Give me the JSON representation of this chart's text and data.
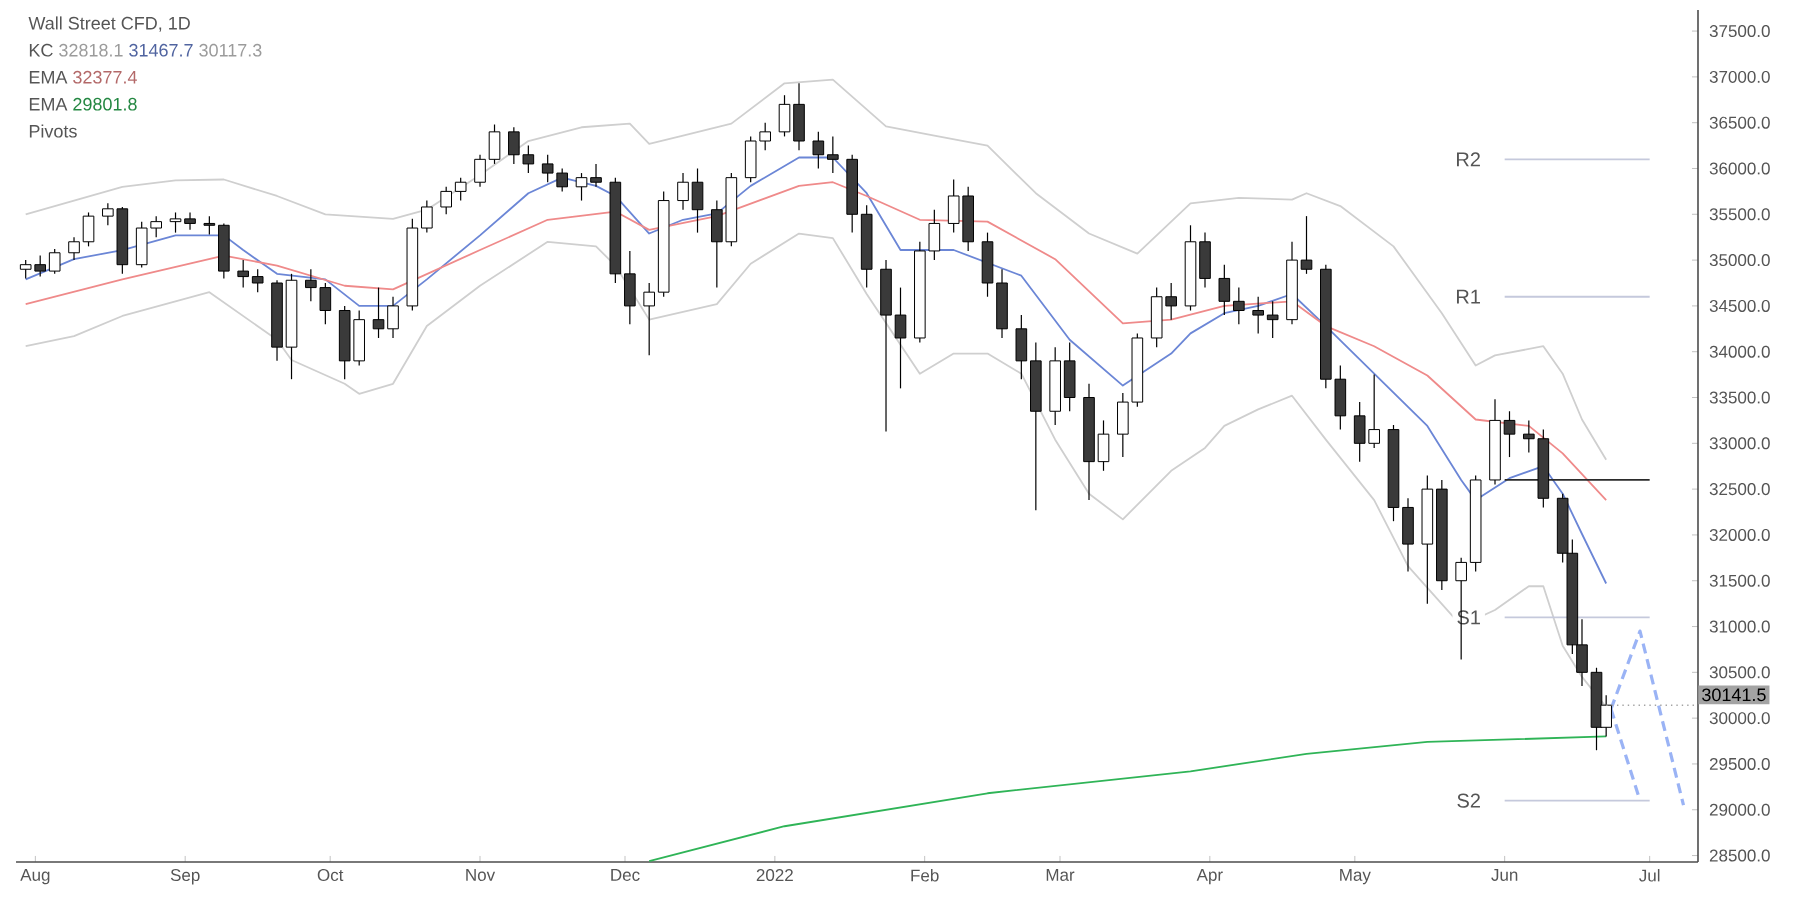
{
  "chart_data": {
    "type": "candlestick",
    "title": "Wall Street CFD, 1D",
    "annotations": [
      "KC",
      "32818.1",
      "31467.7",
      "30117.3",
      "EMA",
      "32377.4",
      "EMA",
      "29801.8",
      "Pivots"
    ],
    "ref_lines": [
      {
        "axis": "y",
        "value": 30141.5,
        "label": "30141.5",
        "color": "#a3a3a3",
        "line_style": "dotted"
      }
    ],
    "x": [
      "2021-07-30",
      "2021-08-02",
      "2021-08-05",
      "2021-08-09",
      "2021-08-12",
      "2021-08-16",
      "2021-08-19",
      "2021-08-23",
      "2021-08-26",
      "2021-08-30",
      "2021-09-02",
      "2021-09-06",
      "2021-09-09",
      "2021-09-13",
      "2021-09-16",
      "2021-09-20",
      "2021-09-23",
      "2021-09-27",
      "2021-09-30",
      "2021-10-04",
      "2021-10-07",
      "2021-10-11",
      "2021-10-14",
      "2021-10-18",
      "2021-10-21",
      "2021-10-25",
      "2021-10-28",
      "2021-11-01",
      "2021-11-04",
      "2021-11-08",
      "2021-11-11",
      "2021-11-15",
      "2021-11-18",
      "2021-11-22",
      "2021-11-25",
      "2021-11-29",
      "2021-12-02",
      "2021-12-06",
      "2021-12-09",
      "2021-12-13",
      "2021-12-16",
      "2021-12-20",
      "2021-12-23",
      "2021-12-27",
      "2021-12-30",
      "2022-01-03",
      "2022-01-06",
      "2022-01-10",
      "2022-01-13",
      "2022-01-17",
      "2022-01-20",
      "2022-01-24",
      "2022-01-27",
      "2022-01-31",
      "2022-02-03",
      "2022-02-07",
      "2022-02-10",
      "2022-02-14",
      "2022-02-17",
      "2022-02-21",
      "2022-02-24",
      "2022-02-28",
      "2022-03-03",
      "2022-03-07",
      "2022-03-10",
      "2022-03-14",
      "2022-03-17",
      "2022-03-21",
      "2022-03-24",
      "2022-03-28",
      "2022-03-31",
      "2022-04-04",
      "2022-04-07",
      "2022-04-11",
      "2022-04-14",
      "2022-04-18",
      "2022-04-21",
      "2022-04-25",
      "2022-04-28",
      "2022-05-02",
      "2022-05-05",
      "2022-05-09",
      "2022-05-12",
      "2022-05-16",
      "2022-05-19",
      "2022-05-23",
      "2022-05-26",
      "2022-05-30",
      "2022-06-02",
      "2022-06-06",
      "2022-06-09",
      "2022-06-13",
      "2022-06-15",
      "2022-06-17",
      "2022-06-20",
      "2022-06-22"
    ],
    "ohlc": [
      [
        34900,
        35000,
        34800,
        34950
      ],
      [
        34950,
        35050,
        34820,
        34880
      ],
      [
        34880,
        35120,
        34850,
        35080
      ],
      [
        35080,
        35250,
        35000,
        35200
      ],
      [
        35200,
        35520,
        35150,
        35480
      ],
      [
        35480,
        35620,
        35380,
        35560
      ],
      [
        35560,
        35580,
        34850,
        34950
      ],
      [
        34950,
        35420,
        34920,
        35350
      ],
      [
        35350,
        35480,
        35250,
        35420
      ],
      [
        35420,
        35520,
        35300,
        35450
      ],
      [
        35450,
        35520,
        35330,
        35400
      ],
      [
        35400,
        35480,
        35280,
        35380
      ],
      [
        35380,
        35400,
        34800,
        34880
      ],
      [
        34880,
        35000,
        34700,
        34820
      ],
      [
        34820,
        34900,
        34650,
        34750
      ],
      [
        34750,
        34780,
        33900,
        34050
      ],
      [
        34050,
        34850,
        33700,
        34780
      ],
      [
        34780,
        34900,
        34550,
        34700
      ],
      [
        34700,
        34750,
        34300,
        34450
      ],
      [
        34450,
        34500,
        33700,
        33900
      ],
      [
        33900,
        34450,
        33850,
        34350
      ],
      [
        34350,
        34700,
        34150,
        34250
      ],
      [
        34250,
        34600,
        34150,
        34500
      ],
      [
        34500,
        35450,
        34450,
        35350
      ],
      [
        35350,
        35650,
        35300,
        35580
      ],
      [
        35580,
        35800,
        35500,
        35750
      ],
      [
        35750,
        35900,
        35650,
        35850
      ],
      [
        35850,
        36150,
        35800,
        36100
      ],
      [
        36100,
        36480,
        36050,
        36400
      ],
      [
        36400,
        36450,
        36050,
        36150
      ],
      [
        36150,
        36250,
        35950,
        36050
      ],
      [
        36050,
        36150,
        35850,
        35950
      ],
      [
        35950,
        36000,
        35750,
        35800
      ],
      [
        35800,
        35950,
        35650,
        35900
      ],
      [
        35900,
        36050,
        35800,
        35850
      ],
      [
        35850,
        35900,
        34750,
        34850
      ],
      [
        34850,
        35100,
        34300,
        34500
      ],
      [
        34500,
        34750,
        33960,
        34650
      ],
      [
        34650,
        35750,
        34600,
        35650
      ],
      [
        35650,
        35950,
        35550,
        35850
      ],
      [
        35850,
        36000,
        35300,
        35550
      ],
      [
        35550,
        35650,
        34700,
        35200
      ],
      [
        35200,
        35950,
        35150,
        35900
      ],
      [
        35900,
        36350,
        35850,
        36300
      ],
      [
        36300,
        36500,
        36200,
        36400
      ],
      [
        36400,
        36800,
        36350,
        36700
      ],
      [
        36700,
        36930,
        36200,
        36300
      ],
      [
        36300,
        36400,
        36000,
        36150
      ],
      [
        36150,
        36350,
        35950,
        36100
      ],
      [
        36100,
        36150,
        35300,
        35500
      ],
      [
        35500,
        35600,
        34700,
        34900
      ],
      [
        34900,
        35000,
        33130,
        34400
      ],
      [
        34400,
        34700,
        33600,
        34150
      ],
      [
        34150,
        35200,
        34100,
        35100
      ],
      [
        35100,
        35550,
        35000,
        35400
      ],
      [
        35400,
        35880,
        35300,
        35700
      ],
      [
        35700,
        35800,
        35100,
        35200
      ],
      [
        35200,
        35300,
        34600,
        34750
      ],
      [
        34750,
        34900,
        34150,
        34250
      ],
      [
        34250,
        34400,
        33700,
        33900
      ],
      [
        33900,
        34100,
        32270,
        33350
      ],
      [
        33350,
        34050,
        33200,
        33900
      ],
      [
        33900,
        34100,
        33350,
        33500
      ],
      [
        33500,
        33650,
        32380,
        32800
      ],
      [
        32800,
        33250,
        32700,
        33100
      ],
      [
        33100,
        33550,
        32850,
        33450
      ],
      [
        33450,
        34200,
        33400,
        34150
      ],
      [
        34150,
        34700,
        34050,
        34600
      ],
      [
        34600,
        34750,
        34350,
        34500
      ],
      [
        34500,
        35380,
        34450,
        35200
      ],
      [
        35200,
        35300,
        34700,
        34800
      ],
      [
        34800,
        34950,
        34400,
        34550
      ],
      [
        34550,
        34700,
        34300,
        34450
      ],
      [
        34450,
        34600,
        34200,
        34400
      ],
      [
        34400,
        34550,
        34150,
        34350
      ],
      [
        34350,
        35200,
        34300,
        35000
      ],
      [
        35000,
        35480,
        34850,
        34900
      ],
      [
        34900,
        34950,
        33600,
        33700
      ],
      [
        33700,
        33850,
        33150,
        33300
      ],
      [
        33300,
        33450,
        32800,
        33000
      ],
      [
        33000,
        33750,
        32950,
        33150
      ],
      [
        33150,
        33200,
        32150,
        32300
      ],
      [
        32300,
        32400,
        31600,
        31900
      ],
      [
        31900,
        32650,
        31250,
        32500
      ],
      [
        32500,
        32600,
        31400,
        31500
      ],
      [
        31500,
        31750,
        30640,
        31700
      ],
      [
        31700,
        32650,
        31600,
        32600
      ],
      [
        32600,
        33480,
        32550,
        33250
      ],
      [
        33250,
        33350,
        32850,
        33100
      ],
      [
        33100,
        33250,
        32900,
        33050
      ],
      [
        33050,
        33150,
        32300,
        32400
      ],
      [
        32400,
        32450,
        31700,
        31800
      ],
      [
        31800,
        31950,
        30700,
        30800
      ],
      [
        30800,
        31080,
        30350,
        30500
      ],
      [
        30500,
        30550,
        29650,
        29900
      ],
      [
        29900,
        30250,
        29800,
        30141.5
      ]
    ],
    "series": [
      {
        "type": "line",
        "color": "#cfcfcf",
        "x": [
          "2021-07-30",
          "2021-08-09",
          "2021-08-19",
          "2021-08-30",
          "2021-09-09",
          "2021-09-20",
          "2021-09-30",
          "2021-10-14",
          "2021-10-21",
          "2021-11-01",
          "2021-11-11",
          "2021-11-22",
          "2021-12-02",
          "2021-12-06",
          "2021-12-13",
          "2021-12-23",
          "2022-01-03",
          "2022-01-13",
          "2022-01-24",
          "2022-02-03",
          "2022-02-14",
          "2022-02-24",
          "2022-03-07",
          "2022-03-17",
          "2022-03-28",
          "2022-04-07",
          "2022-04-18",
          "2022-04-21",
          "2022-04-28",
          "2022-05-09",
          "2022-05-19",
          "2022-05-26",
          "2022-05-30",
          "2022-06-09",
          "2022-06-13",
          "2022-06-17",
          "2022-06-22"
        ],
        "values": [
          35500,
          35650,
          35800,
          35870,
          35880,
          35700,
          35500,
          35450,
          35550,
          35930,
          36300,
          36450,
          36490,
          36270,
          36360,
          36490,
          36930,
          36970,
          36460,
          36360,
          36250,
          35730,
          35290,
          35070,
          35620,
          35680,
          35660,
          35730,
          35590,
          35150,
          34420,
          33850,
          33960,
          34060,
          33760,
          33260,
          32820
        ]
      },
      {
        "type": "line",
        "color": "#6b86d6",
        "x": [
          "2021-07-30",
          "2021-08-09",
          "2021-08-19",
          "2021-08-30",
          "2021-09-09",
          "2021-09-13",
          "2021-09-20",
          "2021-09-30",
          "2021-10-07",
          "2021-10-14",
          "2021-10-21",
          "2021-11-01",
          "2021-11-11",
          "2021-11-18",
          "2021-11-25",
          "2021-11-29",
          "2021-12-06",
          "2021-12-13",
          "2021-12-20",
          "2021-12-27",
          "2022-01-06",
          "2022-01-13",
          "2022-01-20",
          "2022-01-27",
          "2022-02-07",
          "2022-02-21",
          "2022-03-03",
          "2022-03-14",
          "2022-03-24",
          "2022-03-28",
          "2022-04-04",
          "2022-04-11",
          "2022-04-18",
          "2022-04-25",
          "2022-05-05",
          "2022-05-16",
          "2022-05-23",
          "2022-05-26",
          "2022-06-02",
          "2022-06-09",
          "2022-06-13",
          "2022-06-17",
          "2022-06-22"
        ],
        "values": [
          34790,
          35010,
          35110,
          35270,
          35270,
          35110,
          34850,
          34790,
          34500,
          34500,
          34790,
          35270,
          35730,
          35900,
          35810,
          35700,
          35290,
          35440,
          35510,
          35810,
          36120,
          36120,
          35730,
          35110,
          35110,
          34830,
          34130,
          33630,
          33980,
          34200,
          34420,
          34500,
          34630,
          34280,
          33760,
          33190,
          32600,
          32380,
          32620,
          32750,
          32450,
          32010,
          31470
        ]
      },
      {
        "type": "line",
        "color": "#cfcfcf",
        "x": [
          "2021-07-30",
          "2021-08-09",
          "2021-08-19",
          "2021-09-06",
          "2021-09-20",
          "2021-09-23",
          "2021-10-04",
          "2021-10-07",
          "2021-10-14",
          "2021-10-21",
          "2021-11-01",
          "2021-11-15",
          "2021-11-25",
          "2021-11-29",
          "2021-12-06",
          "2021-12-20",
          "2021-12-27",
          "2022-01-06",
          "2022-01-13",
          "2022-01-20",
          "2022-01-31",
          "2022-02-07",
          "2022-02-14",
          "2022-02-21",
          "2022-02-28",
          "2022-03-07",
          "2022-03-14",
          "2022-03-24",
          "2022-03-31",
          "2022-04-04",
          "2022-04-11",
          "2022-04-18",
          "2022-04-25",
          "2022-05-05",
          "2022-05-12",
          "2022-05-23",
          "2022-05-30",
          "2022-06-06",
          "2022-06-09",
          "2022-06-13",
          "2022-06-17",
          "2022-06-22"
        ],
        "values": [
          34060,
          34170,
          34390,
          34650,
          34130,
          33910,
          33650,
          33540,
          33650,
          34280,
          34720,
          35200,
          35150,
          34940,
          34350,
          34520,
          34960,
          35290,
          35240,
          34630,
          33760,
          33980,
          33980,
          33760,
          33040,
          32450,
          32170,
          32700,
          32950,
          33190,
          33370,
          33520,
          33040,
          32380,
          31660,
          31010,
          31180,
          31440,
          31440,
          30790,
          30450,
          30120
        ]
      },
      {
        "type": "line",
        "color": "#ef8a8a",
        "x": [
          "2021-07-30",
          "2021-08-19",
          "2021-09-09",
          "2021-09-20",
          "2021-10-04",
          "2021-10-14",
          "2021-11-01",
          "2021-11-15",
          "2021-11-29",
          "2021-12-06",
          "2021-12-20",
          "2022-01-06",
          "2022-01-13",
          "2022-01-20",
          "2022-01-31",
          "2022-02-14",
          "2022-02-28",
          "2022-03-14",
          "2022-03-24",
          "2022-04-04",
          "2022-04-18",
          "2022-04-25",
          "2022-05-05",
          "2022-05-16",
          "2022-05-26",
          "2022-06-06",
          "2022-06-13",
          "2022-06-22"
        ],
        "values": [
          34520,
          34790,
          35050,
          34940,
          34720,
          34680,
          35110,
          35440,
          35530,
          35330,
          35480,
          35810,
          35850,
          35700,
          35440,
          35420,
          35010,
          34310,
          34350,
          34500,
          34550,
          34280,
          34060,
          33740,
          33260,
          33190,
          32890,
          32380
        ]
      },
      {
        "type": "line",
        "color": "#2fb457",
        "x": [
          "2021-12-06",
          "2022-01-03",
          "2022-02-14",
          "2022-03-28",
          "2022-04-21",
          "2022-05-16",
          "2022-06-22"
        ],
        "values": [
          28440,
          28820,
          29180,
          29420,
          29610,
          29740,
          29800
        ]
      },
      {
        "type": "line",
        "name": "R2",
        "color": "#c5c9dc",
        "x": [
          "2022-06-01",
          "2022-07-01"
        ],
        "values": [
          36100,
          36100
        ]
      },
      {
        "type": "line",
        "name": "R1",
        "color": "#c5c9dc",
        "x": [
          "2022-06-01",
          "2022-07-01"
        ],
        "values": [
          34600,
          34600
        ]
      },
      {
        "type": "line",
        "color": "#2b2b2b",
        "x": [
          "2022-06-01",
          "2022-07-01"
        ],
        "values": [
          32600,
          32600
        ]
      },
      {
        "type": "line",
        "name": "S1",
        "color": "#c5c9dc",
        "x": [
          "2022-06-01",
          "2022-07-01"
        ],
        "values": [
          31100,
          31100
        ]
      },
      {
        "type": "line",
        "name": "S2",
        "color": "#c5c9dc",
        "x": [
          "2022-06-01",
          "2022-07-01"
        ],
        "values": [
          29100,
          29100
        ]
      },
      {
        "type": "line",
        "line_style": "dashed",
        "color": "#9ab3f5",
        "x": [
          "2022-06-23",
          "2022-06-29",
          "2022-07-08"
        ],
        "values": [
          30100,
          30950,
          29050
        ]
      },
      {
        "type": "line",
        "line_style": "dashed",
        "color": "#9ab3f5",
        "x": [
          "2022-06-23",
          "2022-06-29"
        ],
        "values": [
          30100,
          29100
        ]
      }
    ],
    "xlim": [
      "2021-07-28",
      "2022-07-11"
    ],
    "ylim": [
      28430,
      37730
    ],
    "xticks": [
      {
        "value": "2021-08-01",
        "label": "Aug"
      },
      {
        "value": "2021-09-01",
        "label": "Sep"
      },
      {
        "value": "2021-10-01",
        "label": "Oct"
      },
      {
        "value": "2021-11-01",
        "label": "Nov"
      },
      {
        "value": "2021-12-01",
        "label": "Dec"
      },
      {
        "value": "2022-01-01",
        "label": "2022"
      },
      {
        "value": "2022-02-01",
        "label": "Feb"
      },
      {
        "value": "2022-03-01",
        "label": "Mar"
      },
      {
        "value": "2022-04-01",
        "label": "Apr"
      },
      {
        "value": "2022-05-01",
        "label": "May"
      },
      {
        "value": "2022-06-01",
        "label": "Jun"
      },
      {
        "value": "2022-07-01",
        "label": "Jul"
      }
    ],
    "yticks": [
      {
        "value": 28500,
        "label": "28500.0"
      },
      {
        "value": 29000,
        "label": "29000.0"
      },
      {
        "value": 29500,
        "label": "29500.0"
      },
      {
        "value": 30000,
        "label": "30000.0"
      },
      {
        "value": 30500,
        "label": "30500.0"
      },
      {
        "value": 31000,
        "label": "31000.0"
      },
      {
        "value": 31500,
        "label": "31500.0"
      },
      {
        "value": 32000,
        "label": "32000.0"
      },
      {
        "value": 32500,
        "label": "32500.0"
      },
      {
        "value": 33000,
        "label": "33000.0"
      },
      {
        "value": 33500,
        "label": "33500.0"
      },
      {
        "value": 34000,
        "label": "34000.0"
      },
      {
        "value": 34500,
        "label": "34500.0"
      },
      {
        "value": 35000,
        "label": "35000.0"
      },
      {
        "value": 35500,
        "label": "35500.0"
      },
      {
        "value": 36000,
        "label": "36000.0"
      },
      {
        "value": 36500,
        "label": "36500.0"
      },
      {
        "value": 37000,
        "label": "37000.0"
      },
      {
        "value": 37500,
        "label": "37500.0"
      }
    ]
  }
}
